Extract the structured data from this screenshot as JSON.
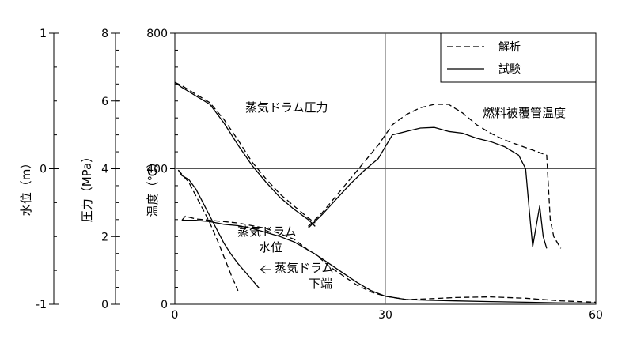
{
  "chart_data": {
    "type": "line",
    "x_axis": {
      "range": [
        0,
        60
      ],
      "ticks": [
        "0",
        "30",
        "60"
      ]
    },
    "left_axes": [
      {
        "label": "水位（m）",
        "range": [
          -1,
          1
        ],
        "ticks": [
          "1",
          "0",
          "-1"
        ]
      },
      {
        "label": "圧力（MPa）",
        "range": [
          0,
          8
        ],
        "ticks": [
          "8",
          "6",
          "4",
          "2",
          "0"
        ]
      },
      {
        "label": "温度（℃）",
        "range": [
          0,
          800
        ],
        "ticks": [
          "800",
          "400",
          "0"
        ]
      }
    ],
    "grid": true,
    "legend": {
      "position": "top-right",
      "items": [
        {
          "label": "解析",
          "style": "dashed"
        },
        {
          "label": "試験",
          "style": "solid"
        }
      ]
    },
    "annotations": {
      "pressure": "蒸気ドラム圧力",
      "temperature": "燃料被覆管温度",
      "level_1": "蒸気ドラム",
      "level_2": "水位",
      "bottom_1": "蒸気ドラム",
      "bottom_2": "下端"
    },
    "series": [
      {
        "name": "蒸気ドラム圧力",
        "axis": "圧力（MPa）",
        "style": "solid",
        "x": [
          0,
          1,
          3,
          5,
          7,
          9,
          11,
          13,
          15,
          17,
          19,
          20
        ],
        "y": [
          6.55,
          6.4,
          6.15,
          5.9,
          5.35,
          4.7,
          4.1,
          3.6,
          3.15,
          2.8,
          2.5,
          2.3
        ]
      },
      {
        "name": "蒸気ドラム圧力",
        "axis": "圧力（MPa）",
        "style": "dashed",
        "x": [
          0,
          1,
          3,
          5,
          7,
          9,
          11,
          13,
          15,
          17,
          19,
          20
        ],
        "y": [
          6.55,
          6.45,
          6.2,
          5.95,
          5.45,
          4.85,
          4.2,
          3.7,
          3.25,
          2.9,
          2.55,
          2.4
        ]
      },
      {
        "name": "燃料被覆管温度",
        "axis": "温度（℃）",
        "style": "solid",
        "x": [
          19,
          21,
          23,
          25,
          27,
          29,
          31,
          33,
          35,
          37,
          39,
          41,
          43,
          45,
          47,
          49,
          50,
          50.5,
          51,
          51.5,
          52,
          52.5,
          53
        ],
        "y": [
          225,
          265,
          310,
          355,
          395,
          430,
          500,
          510,
          520,
          522,
          510,
          505,
          490,
          480,
          465,
          440,
          400,
          280,
          170,
          230,
          290,
          200,
          165
        ]
      },
      {
        "name": "燃料被覆管温度",
        "axis": "温度（℃）",
        "style": "dashed",
        "x": [
          19,
          21,
          23,
          25,
          27,
          29,
          31,
          33,
          35,
          37,
          39,
          41,
          43,
          45,
          47,
          49,
          51,
          53,
          53.5,
          54,
          55
        ],
        "y": [
          230,
          270,
          320,
          370,
          420,
          470,
          530,
          560,
          580,
          590,
          590,
          565,
          530,
          505,
          485,
          470,
          455,
          440,
          250,
          200,
          165
        ]
      },
      {
        "name": "蒸気ドラム水位",
        "axis": "水位（m）",
        "style": "solid",
        "x": [
          1,
          1.5,
          3,
          5,
          7,
          9,
          11,
          13,
          15,
          17,
          19,
          20,
          22,
          24,
          26,
          28,
          30,
          33,
          36,
          40,
          45,
          50,
          55,
          60
        ],
        "y": [
          -0.38,
          -0.38,
          -0.38,
          -0.39,
          -0.41,
          -0.42,
          -0.44,
          -0.47,
          -0.5,
          -0.54,
          -0.6,
          -0.63,
          -0.7,
          -0.77,
          -0.84,
          -0.9,
          -0.94,
          -0.965,
          -0.97,
          -0.975,
          -0.98,
          -0.985,
          -0.99,
          -0.99
        ]
      },
      {
        "name": "蒸気ドラム水位",
        "axis": "水位（m）",
        "style": "dashed",
        "x": [
          1,
          1.5,
          3,
          5,
          7,
          9,
          11,
          13,
          15,
          17,
          19,
          20,
          22,
          24,
          26,
          28,
          30,
          33,
          36,
          40,
          45,
          50,
          55,
          60
        ],
        "y": [
          -0.38,
          -0.35,
          -0.37,
          -0.38,
          -0.39,
          -0.4,
          -0.42,
          -0.44,
          -0.48,
          -0.52,
          -0.6,
          -0.63,
          -0.72,
          -0.79,
          -0.86,
          -0.91,
          -0.94,
          -0.965,
          -0.96,
          -0.95,
          -0.945,
          -0.955,
          -0.975,
          -0.985
        ]
      },
      {
        "name": "蒸気ドラム下端",
        "axis": "水位（m）",
        "style": "solid",
        "x": [
          0.5,
          1,
          2,
          3,
          4,
          5,
          6,
          7,
          8,
          9,
          10,
          11,
          12
        ],
        "y": [
          -0.01,
          -0.05,
          -0.08,
          -0.15,
          -0.25,
          -0.35,
          -0.45,
          -0.55,
          -0.63,
          -0.7,
          -0.76,
          -0.82,
          -0.88
        ]
      },
      {
        "name": "蒸気ドラム下端",
        "axis": "水位（m）",
        "style": "dashed",
        "x": [
          0.5,
          2,
          3,
          4,
          5,
          6,
          7,
          8,
          9
        ],
        "y": [
          -0.01,
          -0.1,
          -0.2,
          -0.3,
          -0.4,
          -0.52,
          -0.65,
          -0.78,
          -0.9
        ]
      }
    ]
  }
}
